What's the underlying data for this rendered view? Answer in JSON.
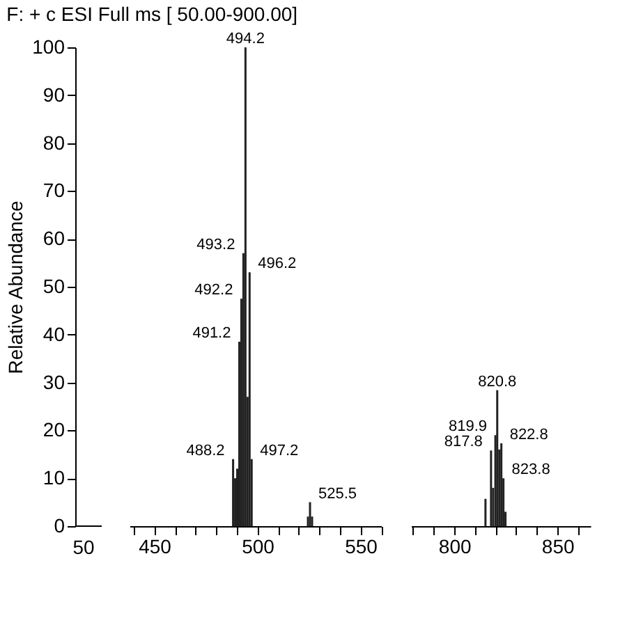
{
  "chart_data": [
    {
      "type": "bar",
      "title": "F: + c ESI Full ms [ 50.00-900.00]",
      "ylabel": "Relative Abundance",
      "x": [
        488.2,
        489.2,
        490.2,
        491.2,
        492.2,
        493.2,
        494.2,
        495.2,
        496.2,
        497.2,
        524.5,
        525.5,
        526.5
      ],
      "values": [
        14,
        10,
        12,
        38.5,
        47.5,
        57,
        100,
        27,
        53,
        14,
        2,
        5,
        2
      ],
      "color": "#222222",
      "xlim": [
        438,
        560
      ],
      "xticks": [
        {
          "value": 440,
          "label": null
        },
        450,
        {
          "value": 460,
          "label": null
        },
        {
          "value": 470,
          "label": null
        },
        {
          "value": 480,
          "label": null
        },
        {
          "value": 490,
          "label": null
        },
        500,
        {
          "value": 510,
          "label": null
        },
        {
          "value": 520,
          "label": null
        },
        {
          "value": 530,
          "label": null
        },
        {
          "value": 540,
          "label": null
        },
        550,
        {
          "value": 560,
          "label": null
        }
      ],
      "ylim": [
        0,
        100
      ],
      "yticks": [
        0,
        10,
        20,
        30,
        40,
        50,
        60,
        70,
        80,
        90,
        100
      ],
      "annotations": [
        "50",
        {
          "text": "488.2",
          "x": 488.2,
          "y": 14
        },
        {
          "text": "491.2",
          "x": 491.2,
          "y": 38.5
        },
        {
          "text": "492.2",
          "x": 492.2,
          "y": 47.5
        },
        {
          "text": "493.2",
          "x": 493.2,
          "y": 57
        },
        {
          "text": "494.2",
          "x": 494.2,
          "y": 100
        },
        {
          "text": "496.2",
          "x": 496.2,
          "y": 53
        },
        {
          "text": "497.2",
          "x": 497.2,
          "y": 14
        },
        {
          "text": "525.5",
          "x": 525.5,
          "y": 5
        }
      ]
    },
    {
      "type": "bar",
      "x": [
        815.1,
        817.8,
        818.8,
        819.9,
        820.8,
        821.8,
        822.8,
        823.8,
        824.8
      ],
      "values": [
        5.7,
        15.8,
        8,
        19,
        28.4,
        16,
        17.3,
        10,
        3
      ],
      "color": "#222222",
      "xlim": [
        779,
        866
      ],
      "xticks": [
        {
          "value": 780,
          "label": null
        },
        {
          "value": 790,
          "label": null
        },
        800,
        {
          "value": 810,
          "label": null
        },
        {
          "value": 820,
          "label": null
        },
        {
          "value": 830,
          "label": null
        },
        {
          "value": 840,
          "label": null
        },
        850,
        {
          "value": 860,
          "label": null
        }
      ],
      "ylim": [
        0,
        100
      ],
      "tick_labels": "x",
      "annotations": [
        {
          "text": "817.8",
          "x": 817.8,
          "y": 15.8
        },
        {
          "text": "819.9",
          "x": 819.9,
          "y": 19
        },
        {
          "text": "820.8",
          "x": 820.8,
          "y": 28.4
        },
        {
          "text": "822.8",
          "x": 822.8,
          "y": 17.3
        },
        {
          "text": "823.8",
          "x": 823.8,
          "y": 10
        }
      ]
    }
  ]
}
